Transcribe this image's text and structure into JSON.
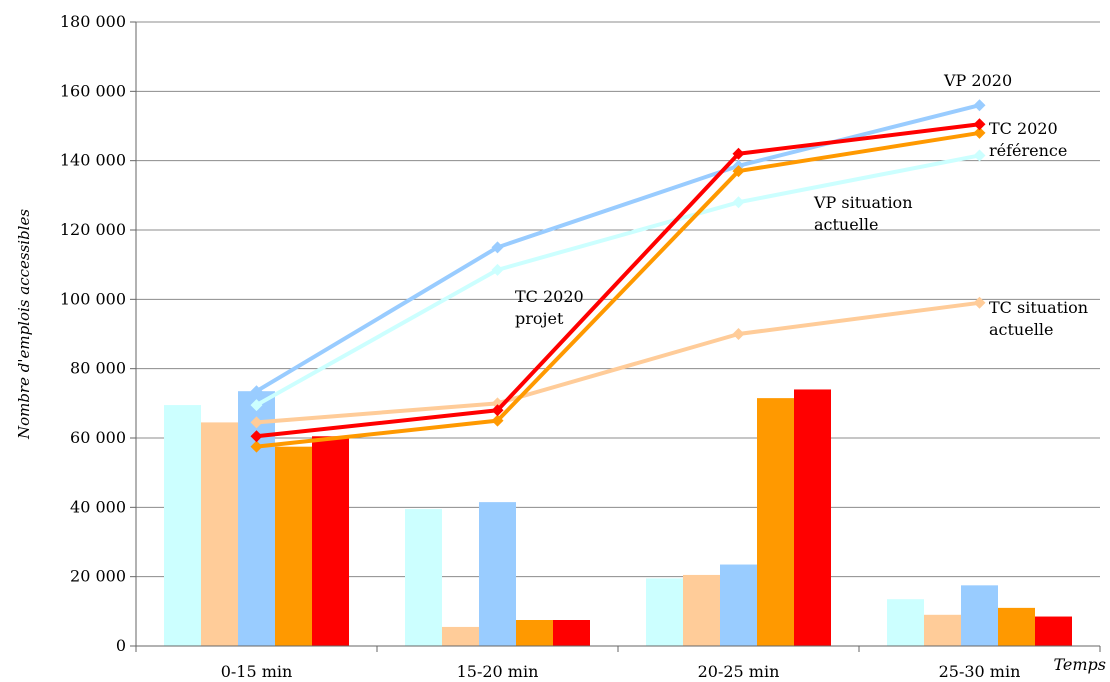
{
  "chart_data": {
    "type": "bar",
    "title": "",
    "ylabel": "Nombre d'emplois accessibles",
    "xlabel": "Temps",
    "ylim": [
      0,
      180000
    ],
    "y_ticks": [
      {
        "value": 0,
        "label": "0"
      },
      {
        "value": 20000,
        "label": "20 000"
      },
      {
        "value": 40000,
        "label": "40 000"
      },
      {
        "value": 60000,
        "label": "60 000"
      },
      {
        "value": 80000,
        "label": "80 000"
      },
      {
        "value": 100000,
        "label": "100 000"
      },
      {
        "value": 120000,
        "label": "120 000"
      },
      {
        "value": 140000,
        "label": "140 000"
      },
      {
        "value": 160000,
        "label": "160 000"
      },
      {
        "value": 180000,
        "label": "180 000"
      }
    ],
    "categories": [
      "0-15 min",
      "15-20 min",
      "20-25 min",
      "25-30 min"
    ],
    "grid": "horizontal",
    "legend": "none",
    "bar_series": [
      {
        "key": "vp_actuel",
        "color": "#ccffff",
        "values": [
          69500,
          39500,
          19500,
          13500
        ]
      },
      {
        "key": "tc_actuel",
        "color": "#ffcc99",
        "values": [
          64500,
          5500,
          20500,
          9000
        ]
      },
      {
        "key": "vp_2020",
        "color": "#99ccff",
        "values": [
          73500,
          41500,
          23500,
          17500
        ]
      },
      {
        "key": "tc_2020_ref",
        "color": "#ff9900",
        "values": [
          57500,
          7500,
          71500,
          11000
        ]
      },
      {
        "key": "tc_2020_projet",
        "color": "#ff0000",
        "values": [
          60500,
          7500,
          74000,
          8500
        ]
      }
    ],
    "line_series": [
      {
        "key": "vp_actuel",
        "color": "#ccffff",
        "values": [
          69500,
          108500,
          128000,
          141500
        ]
      },
      {
        "key": "tc_actuel",
        "color": "#ffcc99",
        "values": [
          64500,
          70000,
          90000,
          99000
        ]
      },
      {
        "key": "vp_2020",
        "color": "#99ccff",
        "values": [
          73500,
          115000,
          138500,
          156000
        ]
      },
      {
        "key": "tc_2020_ref",
        "color": "#ff9900",
        "values": [
          57500,
          65000,
          137000,
          148000
        ]
      },
      {
        "key": "tc_2020_projet",
        "color": "#ff0000",
        "values": [
          60500,
          68000,
          142000,
          150500
        ]
      }
    ],
    "annotations": [
      {
        "key": "vp_2020",
        "lines": [
          "VP 2020"
        ]
      },
      {
        "key": "tc_2020_ref",
        "lines": [
          "TC 2020",
          "référence"
        ]
      },
      {
        "key": "vp_actuel",
        "lines": [
          "VP situation",
          "actuelle"
        ]
      },
      {
        "key": "tc_2020_projet",
        "lines": [
          "TC 2020",
          "projet"
        ]
      },
      {
        "key": "tc_actuel",
        "lines": [
          "TC situation",
          "actuelle"
        ]
      }
    ]
  }
}
